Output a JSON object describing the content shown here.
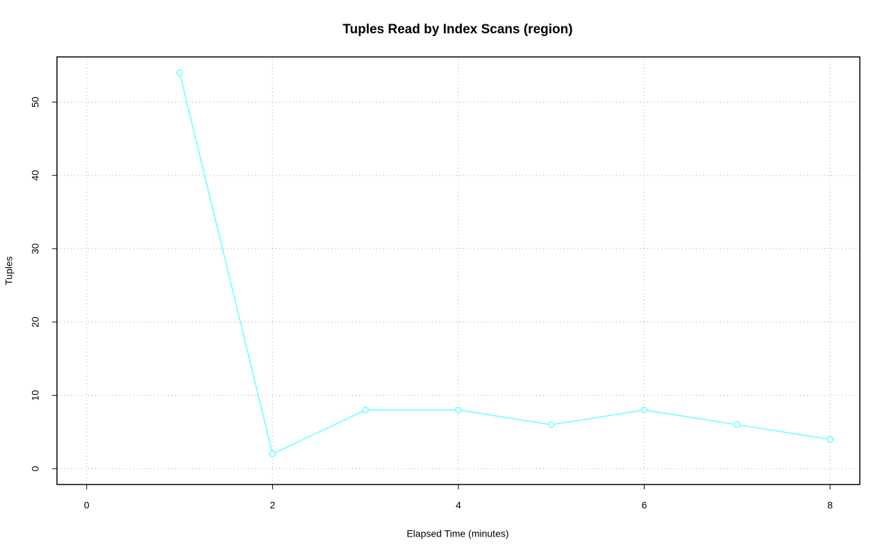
{
  "chart_data": {
    "type": "line",
    "title": "Tuples Read by Index Scans (region)",
    "xlabel": "Elapsed Time (minutes)",
    "ylabel": "Tuples",
    "x": [
      1,
      2,
      3,
      4,
      5,
      6,
      7,
      8
    ],
    "series": [
      {
        "color": "#66ffff",
        "values": [
          54,
          2,
          8,
          8,
          6,
          8,
          6,
          4
        ]
      }
    ],
    "xlim": [
      -0.32,
      8.32
    ],
    "xticks": [
      0,
      2,
      4,
      6,
      8
    ],
    "ylim": [
      -2.16,
      56.16
    ],
    "yticks": [
      0,
      10,
      20,
      30,
      40,
      50
    ],
    "grid": true
  }
}
